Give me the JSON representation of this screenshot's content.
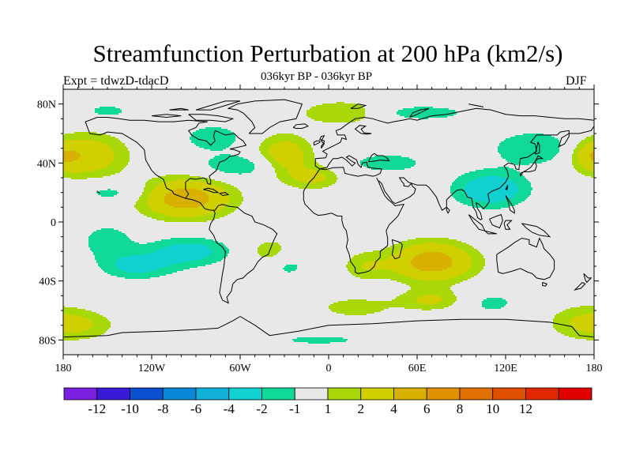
{
  "title": "Streamfunction Perturbation at 200 hPa (km2/s)",
  "left_label": "Expt = tdwzD-tdacD",
  "center_label": "036kyr BP - 036kyr BP",
  "right_label": "DJF",
  "map": {
    "projection": "cylindrical-equidistant",
    "lon_range": [
      -180,
      180
    ],
    "lat_range": [
      -90,
      90
    ],
    "background_color": "#e8e8e8",
    "coastline_color": "#000000",
    "lat_ticks": [
      {
        "value": 80,
        "label": "80N"
      },
      {
        "value": 40,
        "label": "40N"
      },
      {
        "value": 0,
        "label": "0"
      },
      {
        "value": -40,
        "label": "40S"
      },
      {
        "value": -80,
        "label": "80S"
      }
    ],
    "lon_ticks": [
      {
        "value": -180,
        "label": "180"
      },
      {
        "value": -120,
        "label": "120W"
      },
      {
        "value": -60,
        "label": "60W"
      },
      {
        "value": 0,
        "label": "0"
      },
      {
        "value": 60,
        "label": "60E"
      },
      {
        "value": 120,
        "label": "120E"
      },
      {
        "value": 180,
        "label": "180"
      }
    ]
  },
  "colorbar": {
    "colors": [
      "#7a1fe0",
      "#3a1ad8",
      "#0a50d0",
      "#0a88d8",
      "#10b0d8",
      "#10d0d0",
      "#10d898",
      "#e8e8e8",
      "#a8d808",
      "#d0d000",
      "#d8b000",
      "#e09000",
      "#e07000",
      "#e05000",
      "#e02800",
      "#e00000"
    ],
    "labels": [
      "-12",
      "-10",
      "-8",
      "-6",
      "-4",
      "-2",
      "-1",
      "1",
      "2",
      "4",
      "6",
      "8",
      "10",
      "12"
    ]
  }
}
